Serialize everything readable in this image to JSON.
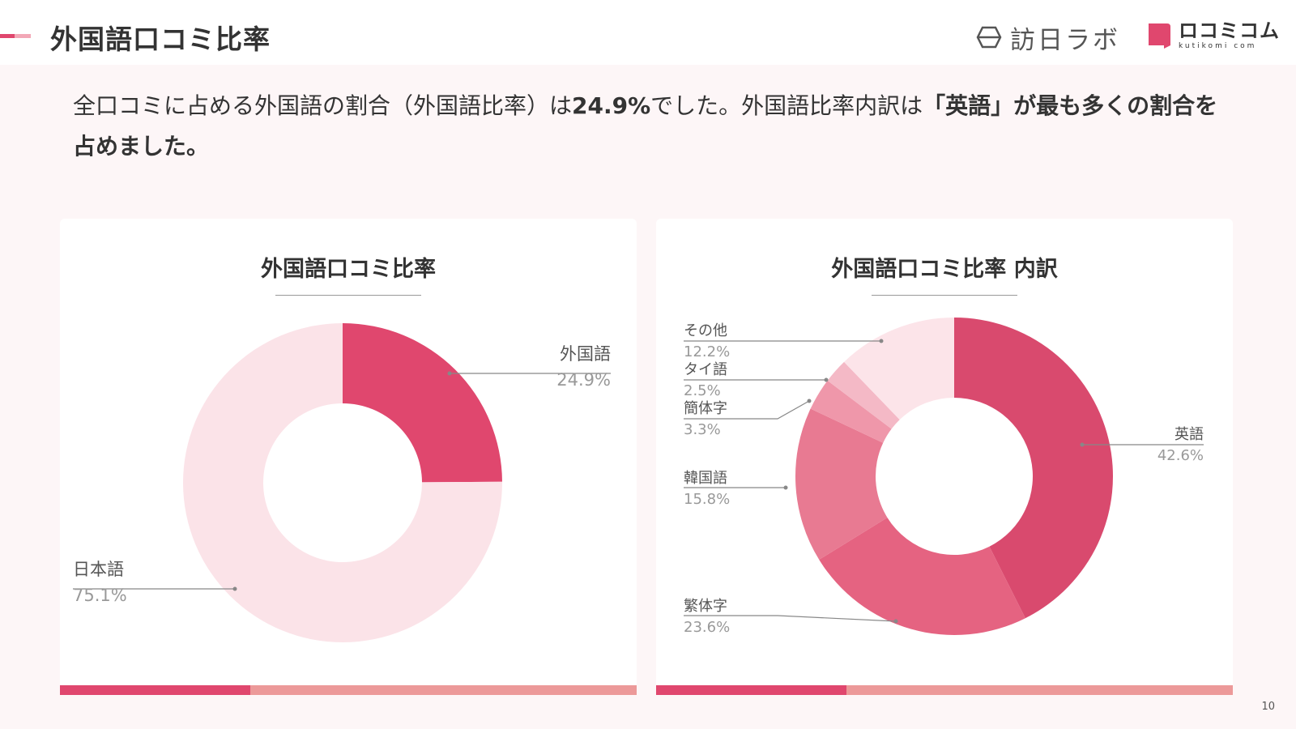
{
  "header": {
    "title": "外国語口コミ比率",
    "logo_houjin": "訪日ラボ",
    "logo_kuchikomi_main": "ロコミコム",
    "logo_kuchikomi_sub": "kutikomi com"
  },
  "summary": {
    "part1": "全口コミに占める外国語の割合（外国語比率）は",
    "bold1": "24.9%",
    "part2": "でした。外国語比率内訳は",
    "bold2": "「英語」が最も多くの割合を占めました。"
  },
  "page_number": "10",
  "colors": {
    "accent": "#e0476e",
    "accent_light": "#ec9999",
    "pink_pale": "#fbe3e8"
  },
  "chart_data": [
    {
      "type": "pie",
      "title": "外国語口コミ比率",
      "slices": [
        {
          "label": "外国語",
          "value": "24.9%",
          "pct": 24.9,
          "color": "#e0476e"
        },
        {
          "label": "日本語",
          "value": "75.1%",
          "pct": 75.1,
          "color": "#fbe3e8"
        }
      ]
    },
    {
      "type": "pie",
      "title": "外国語口コミ比率 内訳",
      "slices": [
        {
          "label": "英語",
          "value": "42.6%",
          "pct": 42.6,
          "color": "#d94a6e"
        },
        {
          "label": "繁体字",
          "value": "23.6%",
          "pct": 23.6,
          "color": "#e56381"
        },
        {
          "label": "韓国語",
          "value": "15.8%",
          "pct": 15.8,
          "color": "#e87a92"
        },
        {
          "label": "簡体字",
          "value": "3.3%",
          "pct": 3.3,
          "color": "#ef97aa"
        },
        {
          "label": "タイ語",
          "value": "2.5%",
          "pct": 2.5,
          "color": "#f4b9c6"
        },
        {
          "label": "その他",
          "value": "12.2%",
          "pct": 12.2,
          "color": "#fce4e9"
        }
      ]
    }
  ]
}
